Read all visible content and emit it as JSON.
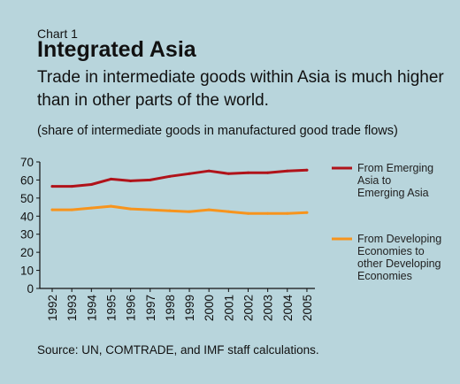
{
  "header": {
    "chart_label": "Chart 1",
    "title": "Integrated Asia",
    "subtitle": "Trade in intermediate goods within Asia is much higher than in other parts of the world.",
    "note": "(share of intermediate goods in manufactured good trade flows)"
  },
  "footer": {
    "source": "Source: UN, COMTRADE, and IMF staff calculations."
  },
  "colors": {
    "background": "#b8d5dc",
    "series1": "#b0131a",
    "series2": "#f7941d"
  },
  "chart_data": {
    "type": "line",
    "x": [
      "1992",
      "1993",
      "1994",
      "1995",
      "1996",
      "1997",
      "1998",
      "1999",
      "2000",
      "2001",
      "2002",
      "2003",
      "2004",
      "2005"
    ],
    "ylim": [
      0,
      70
    ],
    "yticks": [
      0,
      10,
      20,
      30,
      40,
      50,
      60,
      70
    ],
    "grid": false,
    "legend_position": "right",
    "series": [
      {
        "name": "From Emerging Asia to Emerging Asia",
        "legend_lines": [
          "From Emerging",
          "Asia to",
          "Emerging Asia"
        ],
        "color": "#b0131a",
        "values": [
          56.5,
          56.5,
          57.5,
          60.5,
          59.5,
          60,
          62,
          63.5,
          65,
          63.5,
          64,
          64,
          65,
          65.5
        ]
      },
      {
        "name": "From Developing Economies to other Developing Economies",
        "legend_lines": [
          "From Developing",
          "Economies to",
          "other Developing",
          "Economies"
        ],
        "color": "#f7941d",
        "values": [
          43.5,
          43.5,
          44.5,
          45.5,
          44,
          43.5,
          43,
          42.5,
          43.5,
          42.5,
          41.5,
          41.5,
          41.5,
          42
        ]
      }
    ]
  }
}
